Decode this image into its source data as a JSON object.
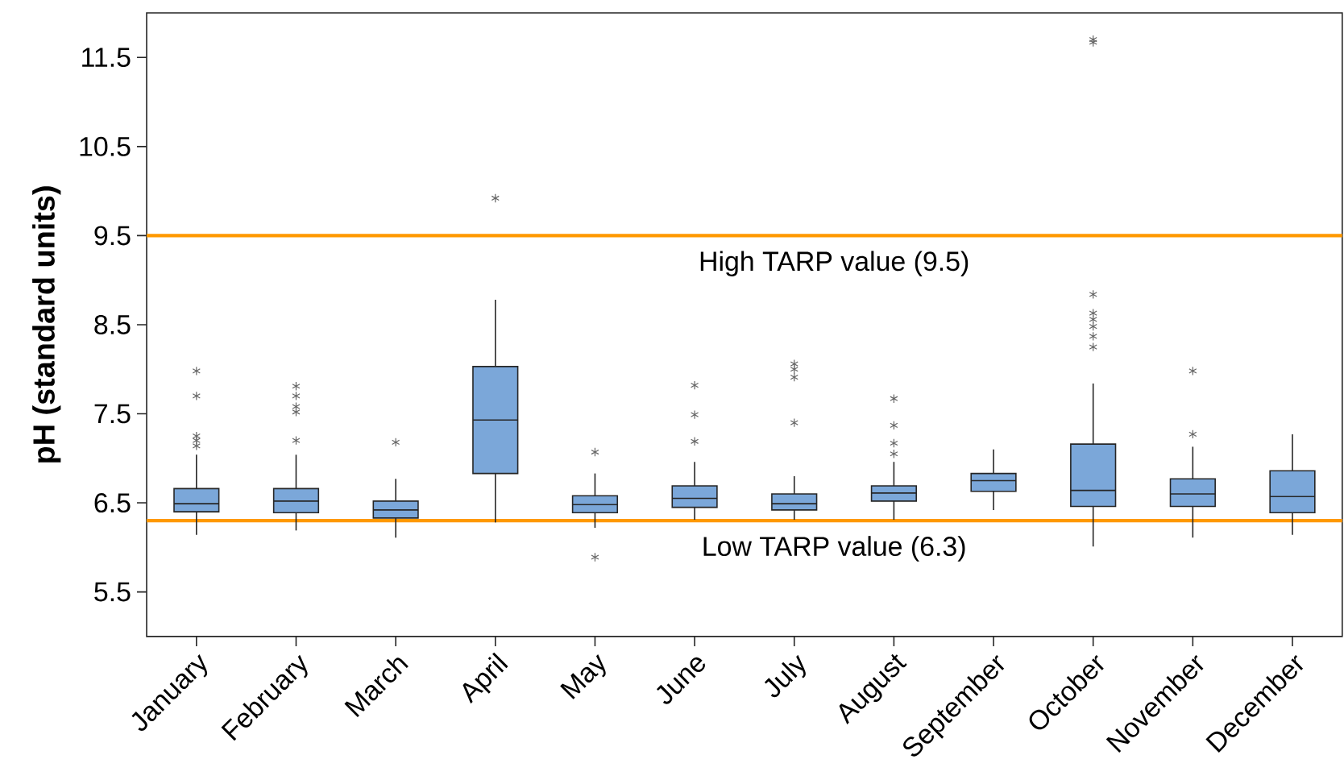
{
  "chart_data": {
    "type": "box",
    "ylabel": "pH (standard units)",
    "categories": [
      "January",
      "February",
      "March",
      "April",
      "May",
      "June",
      "July",
      "August",
      "September",
      "October",
      "November",
      "December"
    ],
    "color": "#7ba7d9",
    "boxes": [
      {
        "low": 6.14,
        "q1": 6.4,
        "median": 6.49,
        "q3": 6.66,
        "high": 7.04,
        "outliers": [
          7.98,
          7.7,
          7.25,
          7.2,
          7.14
        ]
      },
      {
        "low": 6.19,
        "q1": 6.39,
        "median": 6.52,
        "q3": 6.66,
        "high": 7.04,
        "outliers": [
          7.81,
          7.7,
          7.58,
          7.52,
          7.2
        ]
      },
      {
        "low": 6.11,
        "q1": 6.33,
        "median": 6.42,
        "q3": 6.52,
        "high": 6.77,
        "outliers": [
          7.18
        ]
      },
      {
        "low": 6.28,
        "q1": 6.83,
        "median": 7.43,
        "q3": 8.03,
        "high": 8.78,
        "outliers": [
          9.92
        ]
      },
      {
        "low": 6.22,
        "q1": 6.39,
        "median": 6.48,
        "q3": 6.58,
        "high": 6.83,
        "outliers": [
          7.07,
          5.89
        ]
      },
      {
        "low": 6.31,
        "q1": 6.45,
        "median": 6.55,
        "q3": 6.69,
        "high": 6.96,
        "outliers": [
          7.82,
          7.49,
          7.19
        ]
      },
      {
        "low": 6.31,
        "q1": 6.42,
        "median": 6.49,
        "q3": 6.6,
        "high": 6.8,
        "outliers": [
          8.06,
          8.0,
          7.91,
          7.4
        ]
      },
      {
        "low": 6.31,
        "q1": 6.52,
        "median": 6.61,
        "q3": 6.69,
        "high": 6.96,
        "outliers": [
          7.67,
          7.37,
          7.17,
          7.05
        ]
      },
      {
        "low": 6.42,
        "q1": 6.63,
        "median": 6.75,
        "q3": 6.83,
        "high": 7.1
      },
      {
        "low": 6.01,
        "q1": 6.46,
        "median": 6.64,
        "q3": 7.16,
        "high": 7.84,
        "outliers": [
          11.7,
          11.67,
          8.84,
          8.63,
          8.56,
          8.48,
          8.37,
          8.25
        ]
      },
      {
        "low": 6.11,
        "q1": 6.46,
        "median": 6.6,
        "q3": 6.77,
        "high": 7.13,
        "outliers": [
          7.98,
          7.27
        ]
      },
      {
        "low": 6.14,
        "q1": 6.39,
        "median": 6.57,
        "q3": 6.86,
        "high": 7.27
      }
    ],
    "ylim": [
      5,
      12
    ],
    "yticks": [
      5.5,
      6.5,
      7.5,
      8.5,
      9.5,
      10.5,
      11.5
    ],
    "ref_lines": [
      {
        "axis": "y",
        "value": 9.5,
        "label": "High TARP value (9.5)",
        "color": "#ff9900"
      },
      {
        "axis": "y",
        "value": 6.3,
        "label": "Low TARP value (6.3)",
        "color": "#ff9900"
      }
    ]
  }
}
